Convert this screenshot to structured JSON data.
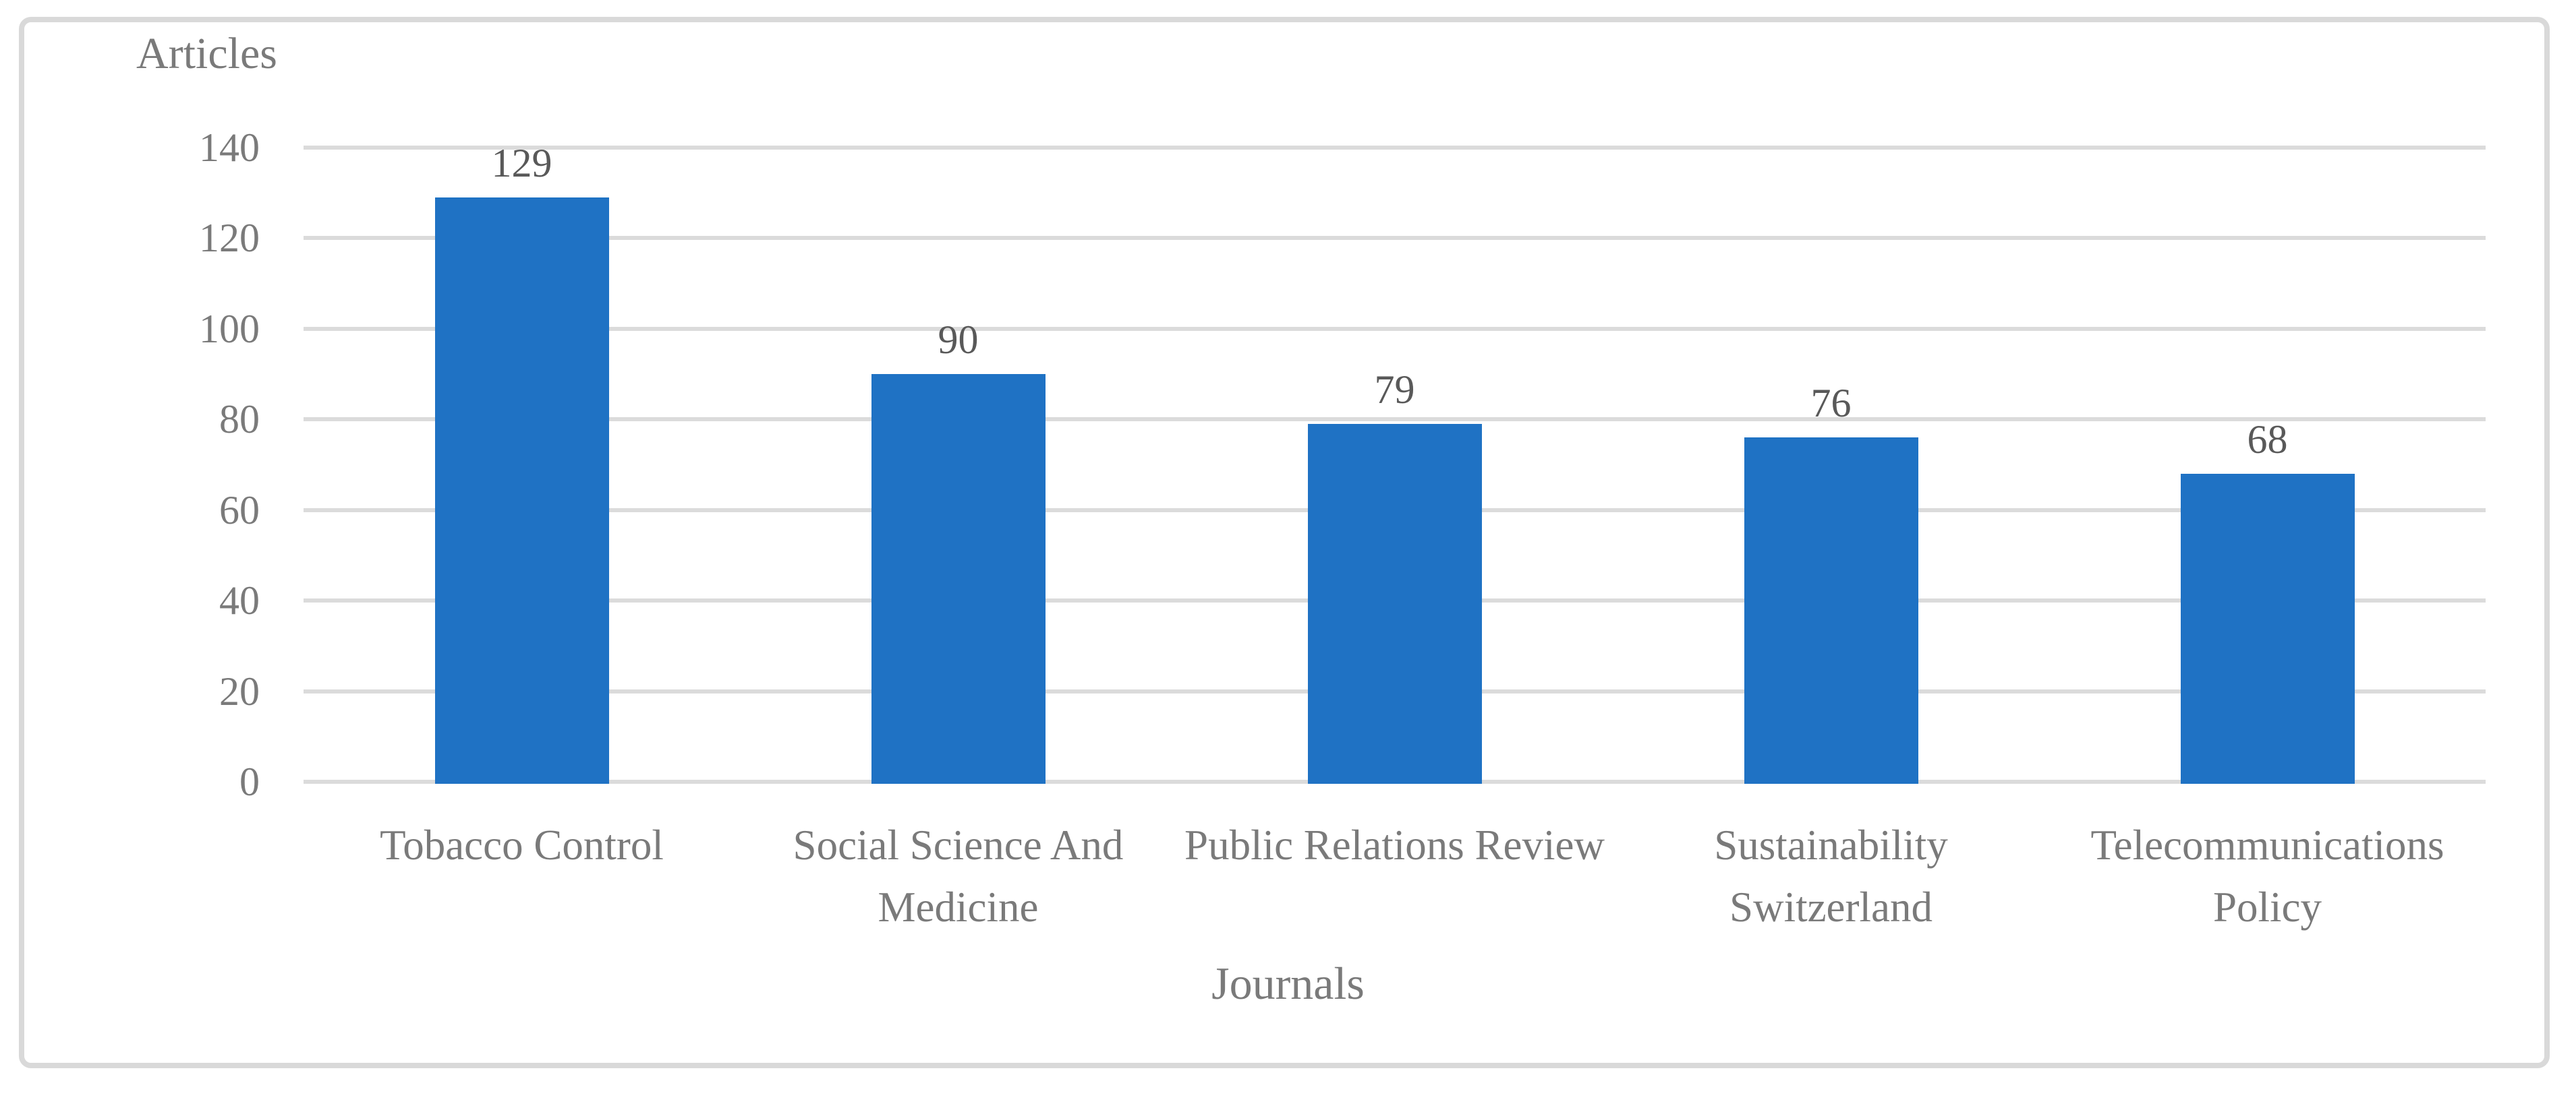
{
  "chart_data": {
    "type": "bar",
    "title": "",
    "categories": [
      "Tobacco Control",
      "Social Science And Medicine",
      "Public Relations Review",
      "Sustainability Switzerland",
      "Telecommunications Policy"
    ],
    "values": [
      129,
      90,
      79,
      76,
      68
    ],
    "data_labels": [
      "129",
      "90",
      "79",
      "76",
      "68"
    ],
    "xlabel": "Journals",
    "ylabel": "Articles",
    "ylim": [
      0,
      140
    ],
    "yticks": [
      0,
      20,
      40,
      60,
      80,
      100,
      120,
      140
    ],
    "grid": "horizontal gridlines on",
    "legend_position": "none",
    "colors": {
      "bar_fill": "#1F72C4",
      "gridline": "#DBDBDB",
      "frame_border": "#D9D9D9",
      "axis_text": "#7A7A7A",
      "data_label_text": "#595959",
      "background": "#FFFFFF"
    }
  }
}
